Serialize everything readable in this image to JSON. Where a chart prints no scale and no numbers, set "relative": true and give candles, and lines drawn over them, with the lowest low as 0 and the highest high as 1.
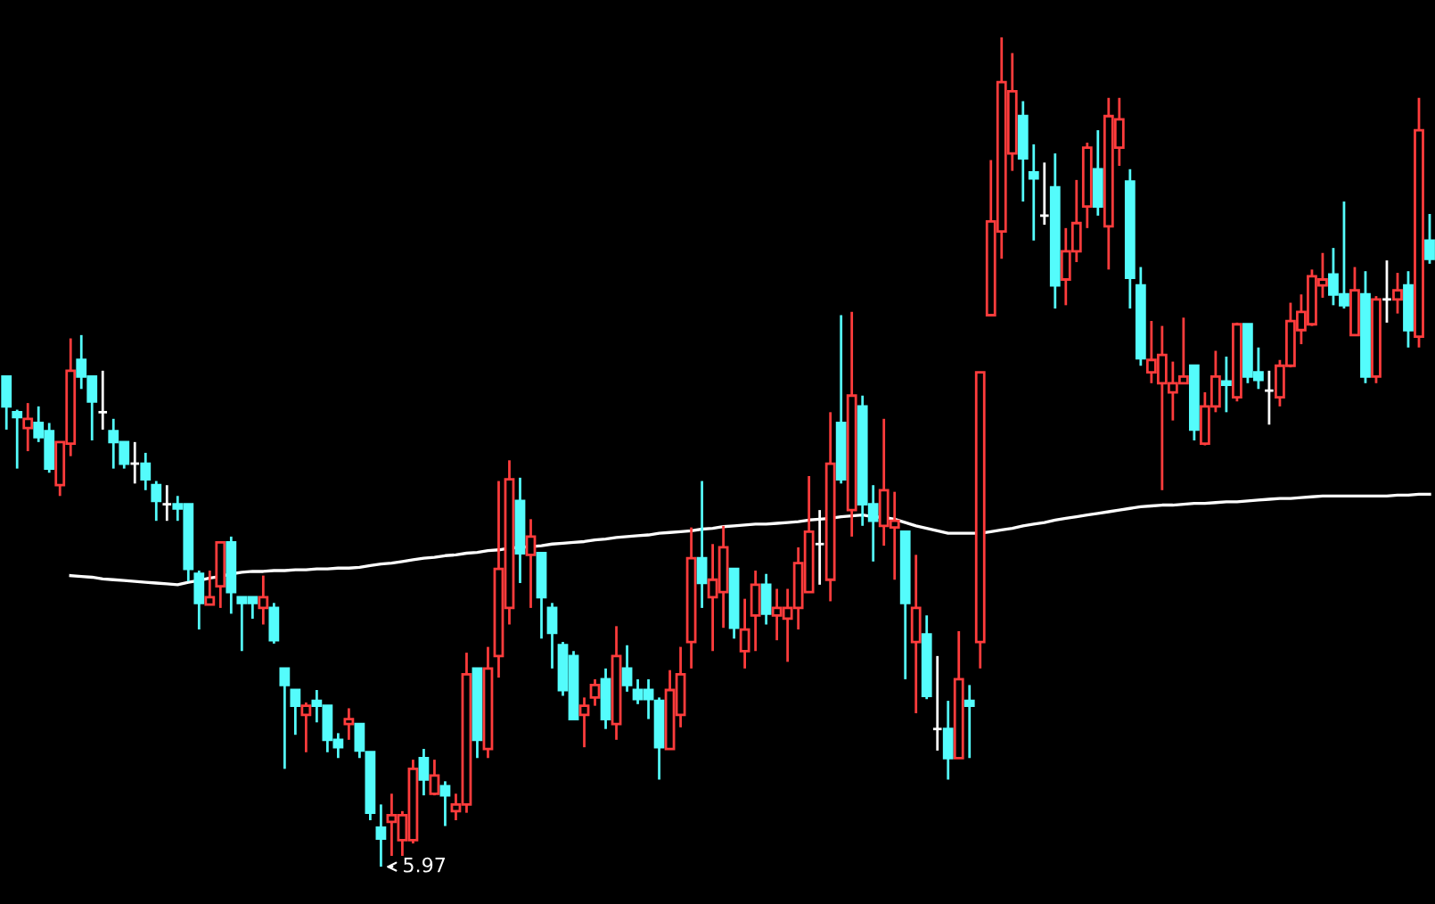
{
  "chart_data": {
    "type": "candlestick",
    "relative": true,
    "categories": [
      null,
      null,
      null,
      null,
      null,
      null,
      null,
      null,
      null,
      null,
      null,
      null,
      null,
      null,
      null,
      null,
      null,
      null,
      null,
      null,
      null,
      null,
      null,
      null,
      null,
      null,
      null,
      null,
      null,
      null,
      null,
      null,
      null,
      null,
      null,
      null,
      null,
      null,
      null,
      null,
      null,
      null,
      null,
      null,
      null,
      null,
      null,
      null,
      null,
      null,
      null,
      null,
      null,
      null,
      null,
      null,
      null,
      null,
      null,
      null,
      null,
      null,
      null,
      null,
      null,
      null,
      null,
      null,
      null,
      null,
      null,
      null,
      null,
      null,
      null,
      null,
      null,
      null,
      null,
      null,
      null,
      null,
      null,
      null,
      null,
      null,
      null,
      null,
      null,
      null,
      null,
      null,
      null,
      null,
      null,
      null,
      null,
      null,
      null,
      null,
      null,
      null,
      null,
      null,
      null,
      null,
      null,
      null,
      null,
      null,
      null,
      null,
      null,
      null,
      null,
      null,
      null,
      null,
      null,
      null,
      null,
      null,
      null,
      null,
      null,
      null,
      null,
      null,
      null,
      null,
      null,
      null,
      null,
      null
    ],
    "ohlc": [
      [
        0.591,
        0.591,
        0.527,
        0.555
      ],
      [
        0.548,
        0.551,
        0.48,
        0.542
      ],
      [
        0.529,
        0.559,
        0.501,
        0.54
      ],
      [
        0.535,
        0.555,
        0.512,
        0.518
      ],
      [
        0.525,
        0.535,
        0.475,
        0.48
      ],
      [
        0.46,
        0.512,
        0.447,
        0.512
      ],
      [
        0.51,
        0.637,
        0.495,
        0.598
      ],
      [
        0.611,
        0.641,
        0.576,
        0.591
      ],
      [
        0.591,
        0.591,
        0.514,
        0.561
      ],
      [
        0.548,
        0.598,
        0.527,
        0.548
      ],
      [
        0.525,
        0.54,
        0.48,
        0.512
      ],
      [
        0.512,
        0.512,
        0.48,
        0.486
      ],
      [
        0.486,
        0.512,
        0.462,
        0.486
      ],
      [
        0.486,
        0.499,
        0.454,
        0.467
      ],
      [
        0.46,
        0.465,
        0.417,
        0.441
      ],
      [
        0.437,
        0.46,
        0.417,
        0.437
      ],
      [
        0.437,
        0.447,
        0.417,
        0.432
      ],
      [
        0.437,
        0.437,
        0.344,
        0.359
      ],
      [
        0.353,
        0.357,
        0.286,
        0.318
      ],
      [
        0.316,
        0.357,
        0.316,
        0.325
      ],
      [
        0.338,
        0.391,
        0.312,
        0.391
      ],
      [
        0.391,
        0.398,
        0.305,
        0.331
      ],
      [
        0.325,
        0.325,
        0.26,
        0.318
      ],
      [
        0.325,
        0.325,
        0.299,
        0.318
      ],
      [
        0.312,
        0.351,
        0.292,
        0.325
      ],
      [
        0.312,
        0.318,
        0.269,
        0.273
      ],
      [
        0.239,
        0.239,
        0.118,
        0.219
      ],
      [
        0.213,
        0.213,
        0.159,
        0.194
      ],
      [
        0.183,
        0.198,
        0.138,
        0.194
      ],
      [
        0.2,
        0.213,
        0.174,
        0.194
      ],
      [
        0.194,
        0.194,
        0.138,
        0.153
      ],
      [
        0.153,
        0.161,
        0.131,
        0.144
      ],
      [
        0.172,
        0.191,
        0.153,
        0.178
      ],
      [
        0.172,
        0.172,
        0.131,
        0.14
      ],
      [
        0.138,
        0.138,
        0.056,
        0.065
      ],
      [
        0.047,
        0.075,
        0.0,
        0.034
      ],
      [
        0.054,
        0.088,
        0.013,
        0.062
      ],
      [
        0.032,
        0.067,
        0.013,
        0.062
      ],
      [
        0.032,
        0.129,
        0.028,
        0.118
      ],
      [
        0.131,
        0.142,
        0.086,
        0.105
      ],
      [
        0.088,
        0.129,
        0.086,
        0.11
      ],
      [
        0.097,
        0.103,
        0.049,
        0.086
      ],
      [
        0.067,
        0.088,
        0.056,
        0.075
      ],
      [
        0.075,
        0.258,
        0.065,
        0.232
      ],
      [
        0.239,
        0.239,
        0.131,
        0.153
      ],
      [
        0.142,
        0.265,
        0.131,
        0.239
      ],
      [
        0.254,
        0.465,
        0.228,
        0.359
      ],
      [
        0.312,
        0.49,
        0.292,
        0.467
      ],
      [
        0.441,
        0.469,
        0.342,
        0.378
      ],
      [
        0.376,
        0.419,
        0.312,
        0.398
      ],
      [
        0.378,
        0.378,
        0.275,
        0.325
      ],
      [
        0.312,
        0.318,
        0.239,
        0.282
      ],
      [
        0.267,
        0.271,
        0.206,
        0.213
      ],
      [
        0.254,
        0.26,
        0.178,
        0.178
      ],
      [
        0.183,
        0.204,
        0.144,
        0.194
      ],
      [
        0.204,
        0.226,
        0.194,
        0.219
      ],
      [
        0.226,
        0.239,
        0.166,
        0.178
      ],
      [
        0.172,
        0.29,
        0.153,
        0.254
      ],
      [
        0.239,
        0.267,
        0.211,
        0.219
      ],
      [
        0.213,
        0.226,
        0.196,
        0.202
      ],
      [
        0.213,
        0.226,
        0.178,
        0.202
      ],
      [
        0.2,
        0.204,
        0.105,
        0.144
      ],
      [
        0.142,
        0.237,
        0.142,
        0.213
      ],
      [
        0.183,
        0.265,
        0.168,
        0.232
      ],
      [
        0.271,
        0.409,
        0.239,
        0.372
      ],
      [
        0.372,
        0.465,
        0.312,
        0.342
      ],
      [
        0.325,
        0.389,
        0.26,
        0.346
      ],
      [
        0.331,
        0.411,
        0.288,
        0.385
      ],
      [
        0.359,
        0.359,
        0.275,
        0.288
      ],
      [
        0.26,
        0.323,
        0.239,
        0.286
      ],
      [
        0.303,
        0.357,
        0.26,
        0.34
      ],
      [
        0.34,
        0.353,
        0.292,
        0.305
      ],
      [
        0.303,
        0.335,
        0.273,
        0.312
      ],
      [
        0.299,
        0.335,
        0.247,
        0.312
      ],
      [
        0.312,
        0.385,
        0.286,
        0.366
      ],
      [
        0.331,
        0.471,
        0.331,
        0.404
      ],
      [
        0.389,
        0.43,
        0.34,
        0.389
      ],
      [
        0.346,
        0.548,
        0.32,
        0.486
      ],
      [
        0.535,
        0.665,
        0.462,
        0.467
      ],
      [
        0.43,
        0.669,
        0.398,
        0.568
      ],
      [
        0.555,
        0.568,
        0.411,
        0.437
      ],
      [
        0.437,
        0.46,
        0.368,
        0.417
      ],
      [
        0.411,
        0.54,
        0.387,
        0.454
      ],
      [
        0.409,
        0.452,
        0.346,
        0.417
      ],
      [
        0.404,
        0.404,
        0.226,
        0.318
      ],
      [
        0.271,
        0.376,
        0.185,
        0.312
      ],
      [
        0.28,
        0.303,
        0.202,
        0.206
      ],
      [
        0.166,
        0.254,
        0.14,
        0.166
      ],
      [
        0.166,
        0.2,
        0.105,
        0.131
      ],
      [
        0.131,
        0.284,
        0.131,
        0.226
      ],
      [
        0.2,
        0.219,
        0.131,
        0.194
      ],
      [
        0.271,
        0.596,
        0.239,
        0.596
      ],
      [
        0.665,
        0.852,
        0.665,
        0.778
      ],
      [
        0.766,
        1.0,
        0.733,
        0.946
      ],
      [
        0.86,
        0.981,
        0.839,
        0.935
      ],
      [
        0.905,
        0.923,
        0.802,
        0.854
      ],
      [
        0.837,
        0.871,
        0.755,
        0.83
      ],
      [
        0.785,
        0.849,
        0.774,
        0.785
      ],
      [
        0.819,
        0.86,
        0.673,
        0.701
      ],
      [
        0.708,
        0.77,
        0.677,
        0.742
      ],
      [
        0.742,
        0.828,
        0.729,
        0.776
      ],
      [
        0.796,
        0.873,
        0.77,
        0.867
      ],
      [
        0.841,
        0.888,
        0.785,
        0.796
      ],
      [
        0.772,
        0.927,
        0.72,
        0.905
      ],
      [
        0.867,
        0.927,
        0.845,
        0.901
      ],
      [
        0.826,
        0.841,
        0.673,
        0.71
      ],
      [
        0.701,
        0.723,
        0.604,
        0.613
      ],
      [
        0.596,
        0.658,
        0.583,
        0.611
      ],
      [
        0.583,
        0.652,
        0.454,
        0.617
      ],
      [
        0.572,
        0.609,
        0.538,
        0.583
      ],
      [
        0.583,
        0.662,
        0.583,
        0.591
      ],
      [
        0.604,
        0.604,
        0.514,
        0.527
      ],
      [
        0.51,
        0.572,
        0.508,
        0.555
      ],
      [
        0.555,
        0.622,
        0.548,
        0.591
      ],
      [
        0.585,
        0.615,
        0.548,
        0.581
      ],
      [
        0.566,
        0.656,
        0.561,
        0.654
      ],
      [
        0.654,
        0.654,
        0.583,
        0.591
      ],
      [
        0.596,
        0.626,
        0.576,
        0.587
      ],
      [
        0.574,
        0.598,
        0.533,
        0.574
      ],
      [
        0.566,
        0.611,
        0.555,
        0.604
      ],
      [
        0.604,
        0.68,
        0.602,
        0.658
      ],
      [
        0.647,
        0.69,
        0.63,
        0.669
      ],
      [
        0.654,
        0.72,
        0.652,
        0.712
      ],
      [
        0.701,
        0.74,
        0.686,
        0.708
      ],
      [
        0.714,
        0.746,
        0.677,
        0.69
      ],
      [
        0.69,
        0.802,
        0.673,
        0.677
      ],
      [
        0.641,
        0.723,
        0.641,
        0.695
      ],
      [
        0.69,
        0.718,
        0.583,
        0.591
      ],
      [
        0.591,
        0.688,
        0.583,
        0.684
      ],
      [
        0.684,
        0.731,
        0.656,
        0.684
      ],
      [
        0.684,
        0.716,
        0.667,
        0.695
      ],
      [
        0.701,
        0.718,
        0.626,
        0.647
      ],
      [
        0.639,
        0.927,
        0.626,
        0.888
      ],
      [
        0.755,
        0.787,
        0.727,
        0.733
      ]
    ],
    "colors": [
      "#54fcfc",
      "#54fcfc",
      "#ff3c3c",
      "#54fcfc",
      "#54fcfc",
      "#ff3c3c",
      "#ff3c3c",
      "#54fcfc",
      "#54fcfc",
      "#ffffff",
      "#54fcfc",
      "#54fcfc",
      "#ffffff",
      "#54fcfc",
      "#54fcfc",
      "#ffffff",
      "#54fcfc",
      "#54fcfc",
      "#54fcfc",
      "#ff3c3c",
      "#ff3c3c",
      "#54fcfc",
      "#54fcfc",
      "#54fcfc",
      "#ff3c3c",
      "#54fcfc",
      "#54fcfc",
      "#54fcfc",
      "#ff3c3c",
      "#54fcfc",
      "#54fcfc",
      "#54fcfc",
      "#ff3c3c",
      "#54fcfc",
      "#54fcfc",
      "#54fcfc",
      "#ff3c3c",
      "#ff3c3c",
      "#ff3c3c",
      "#54fcfc",
      "#ff3c3c",
      "#54fcfc",
      "#ff3c3c",
      "#ff3c3c",
      "#54fcfc",
      "#ff3c3c",
      "#ff3c3c",
      "#ff3c3c",
      "#54fcfc",
      "#ff3c3c",
      "#54fcfc",
      "#54fcfc",
      "#54fcfc",
      "#54fcfc",
      "#ff3c3c",
      "#ff3c3c",
      "#54fcfc",
      "#ff3c3c",
      "#54fcfc",
      "#54fcfc",
      "#54fcfc",
      "#54fcfc",
      "#ff3c3c",
      "#ff3c3c",
      "#ff3c3c",
      "#54fcfc",
      "#ff3c3c",
      "#ff3c3c",
      "#54fcfc",
      "#ff3c3c",
      "#ff3c3c",
      "#54fcfc",
      "#ff3c3c",
      "#ff3c3c",
      "#ff3c3c",
      "#ff3c3c",
      "#ffffff",
      "#ff3c3c",
      "#54fcfc",
      "#ff3c3c",
      "#54fcfc",
      "#54fcfc",
      "#ff3c3c",
      "#ff3c3c",
      "#54fcfc",
      "#ff3c3c",
      "#54fcfc",
      "#ffffff",
      "#54fcfc",
      "#ff3c3c",
      "#54fcfc",
      "#ff3c3c",
      "#ff3c3c",
      "#ff3c3c",
      "#ff3c3c",
      "#54fcfc",
      "#54fcfc",
      "#ffffff",
      "#54fcfc",
      "#ff3c3c",
      "#ff3c3c",
      "#ff3c3c",
      "#54fcfc",
      "#ff3c3c",
      "#ff3c3c",
      "#54fcfc",
      "#54fcfc",
      "#ff3c3c",
      "#ff3c3c",
      "#ff3c3c",
      "#ff3c3c",
      "#54fcfc",
      "#ff3c3c",
      "#ff3c3c",
      "#54fcfc",
      "#ff3c3c",
      "#54fcfc",
      "#54fcfc",
      "#ffffff",
      "#ff3c3c",
      "#ff3c3c",
      "#ff3c3c",
      "#ff3c3c",
      "#ff3c3c",
      "#54fcfc",
      "#54fcfc",
      "#ff3c3c",
      "#54fcfc",
      "#ff3c3c",
      "#ffffff",
      "#ff3c3c",
      "#54fcfc",
      "#ff3c3c",
      "#54fcfc"
    ],
    "series": [
      {
        "type": "line",
        "color": "#ffffff",
        "values": [
          null,
          null,
          null,
          null,
          null,
          null,
          0.351,
          0.35,
          0.349,
          0.347,
          0.346,
          0.345,
          0.344,
          0.343,
          0.342,
          0.341,
          0.34,
          0.343,
          0.345,
          0.348,
          0.35,
          0.353,
          0.355,
          0.356,
          0.356,
          0.357,
          0.357,
          0.358,
          0.358,
          0.359,
          0.359,
          0.36,
          0.36,
          0.361,
          0.363,
          0.365,
          0.366,
          0.368,
          0.37,
          0.372,
          0.373,
          0.375,
          0.376,
          0.378,
          0.379,
          0.381,
          0.382,
          0.384,
          0.385,
          0.386,
          0.387,
          0.389,
          0.39,
          0.391,
          0.392,
          0.394,
          0.395,
          0.397,
          0.398,
          0.399,
          0.4,
          0.402,
          0.403,
          0.404,
          0.405,
          0.407,
          0.408,
          0.41,
          0.411,
          0.412,
          0.413,
          0.413,
          0.414,
          0.415,
          0.416,
          0.418,
          0.419,
          0.42,
          0.422,
          0.423,
          0.424,
          0.422,
          0.421,
          0.419,
          0.415,
          0.411,
          0.408,
          0.405,
          0.402,
          0.402,
          0.402,
          0.402,
          0.404,
          0.406,
          0.408,
          0.411,
          0.413,
          0.415,
          0.418,
          0.42,
          0.422,
          0.424,
          0.426,
          0.428,
          0.43,
          0.432,
          0.434,
          0.435,
          0.436,
          0.436,
          0.437,
          0.438,
          0.438,
          0.439,
          0.44,
          0.44,
          0.441,
          0.442,
          0.443,
          0.444,
          0.444,
          0.445,
          0.446,
          0.447,
          0.447,
          0.447,
          0.447,
          0.447,
          0.447,
          0.447,
          0.448,
          0.448,
          0.449,
          0.449
        ]
      }
    ],
    "annotations": [
      "5.97"
    ]
  }
}
